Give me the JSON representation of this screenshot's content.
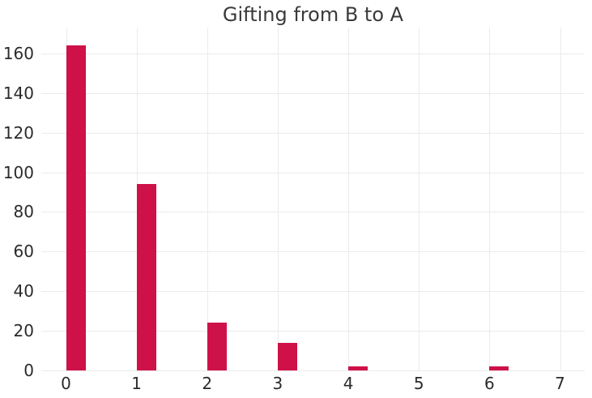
{
  "chart_data": {
    "type": "bar",
    "title": "Gifting from B to A",
    "categories": [
      0,
      1,
      2,
      3,
      4,
      5,
      6,
      7
    ],
    "values": [
      164,
      94,
      24,
      14,
      2,
      0,
      2,
      0
    ],
    "xlabel": "",
    "ylabel": "",
    "xticks": [
      0,
      1,
      2,
      3,
      4,
      5,
      6,
      7
    ],
    "yticks": [
      0,
      20,
      40,
      60,
      80,
      100,
      120,
      140,
      160
    ],
    "xlim": [
      -0.35,
      7.35
    ],
    "ylim": [
      0,
      173
    ],
    "grid": true,
    "legend": false,
    "bar_color": "#CE1249",
    "grid_color": "#ebebeb",
    "text_color": "#2b2b2b",
    "title_color": "#3a3a3a",
    "background_color": "#ffffff"
  }
}
